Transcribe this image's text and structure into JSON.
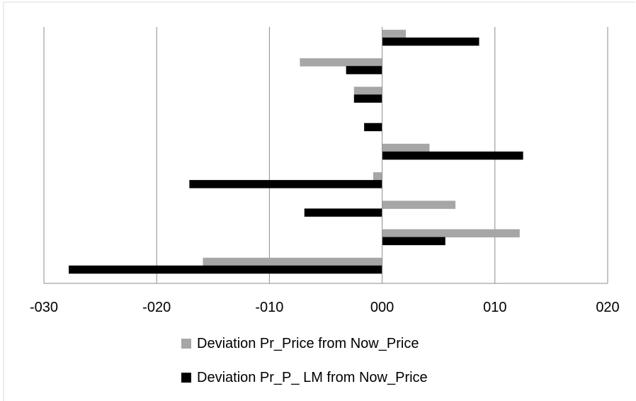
{
  "chart_data": {
    "type": "bar",
    "orientation": "horizontal",
    "title": "",
    "xlabel": "",
    "ylabel": "",
    "xlim": [
      -30,
      20
    ],
    "x_ticks": [
      "-030",
      "-020",
      "-010",
      "000",
      "010",
      "020"
    ],
    "x_tick_values": [
      -30,
      -20,
      -10,
      0,
      10,
      20
    ],
    "grid": "vertical",
    "legend_position": "bottom",
    "category_count": 9,
    "series": [
      {
        "name": "Deviation Pr_Price from Now_Price",
        "color": "#a6a6a6",
        "values": [
          2.1,
          -7.3,
          -2.5,
          0,
          4.2,
          -0.8,
          6.5,
          12.2,
          -15.9
        ]
      },
      {
        "name": "Deviation Pr_P_ LM from Now_Price",
        "color": "#000000",
        "values": [
          8.6,
          -3.2,
          -2.5,
          -1.6,
          12.5,
          -17.1,
          -6.9,
          5.6,
          -27.8
        ]
      }
    ]
  }
}
